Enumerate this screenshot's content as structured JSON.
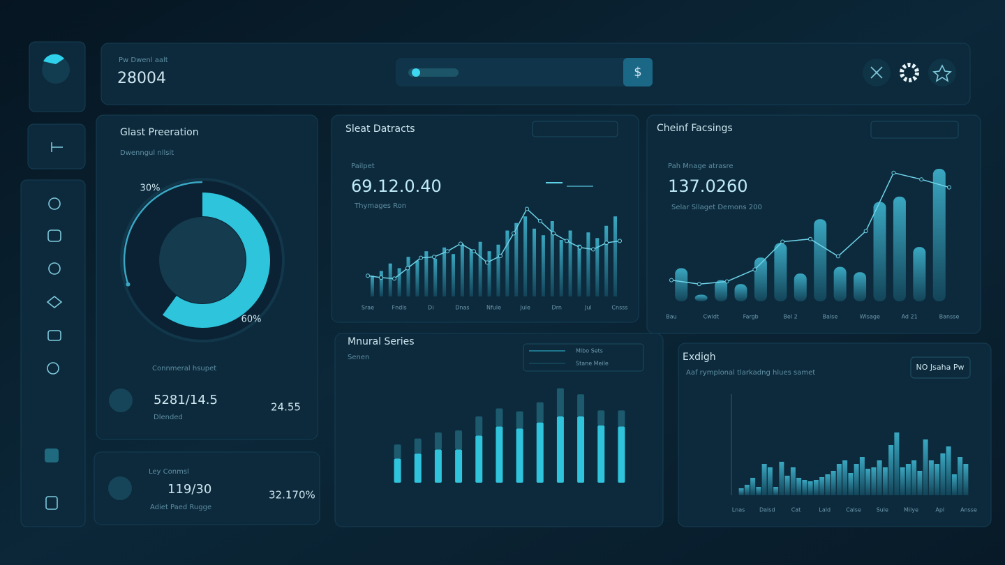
{
  "header": {
    "label": "Pw Dwenl aalt",
    "value": "28004",
    "search_button": "$"
  },
  "gauge_panel": {
    "title": "Glast Preeration",
    "subtitle": "Dwenngul nllsit",
    "chart": {
      "type": "pie",
      "values": [
        30,
        60
      ],
      "value_labels": [
        "30%",
        "60%"
      ]
    },
    "footer_label": "Connmeral hsupet",
    "footer_value": "5281/14.5",
    "footer_note": "Dlended",
    "footer_side": "24.55"
  },
  "summary_panel": {
    "label": "Ley Conmsl",
    "value": "119/30",
    "note": "Adiet Paed Rugge",
    "side": "32.170%"
  },
  "sales_panel": {
    "title": "Sleat Datracts",
    "label": "Pailpet",
    "value": "69.12.0.40",
    "note": "Thymages Ron",
    "chart": {
      "type": "bar",
      "ylim": [
        0,
        100
      ],
      "values": [
        22,
        27,
        35,
        30,
        42,
        38,
        48,
        40,
        52,
        45,
        56,
        50,
        58,
        48,
        55,
        70,
        78,
        85,
        72,
        65,
        80,
        60,
        70,
        55,
        68,
        62,
        75,
        85
      ],
      "line": [
        22,
        20,
        19,
        30,
        41,
        42,
        48,
        56,
        48,
        36,
        43,
        67,
        93,
        80,
        67,
        59,
        52,
        50,
        57,
        59
      ],
      "x_labels": [
        "Srae",
        "Fndls",
        "Di",
        "Dnas",
        "Nfule",
        "Jule",
        "Drn",
        "Jul",
        "Cnsss"
      ]
    }
  },
  "facings_panel": {
    "title": "Cheinf Facsings",
    "label": "Pah Mnage atrasre",
    "value": "137.0260",
    "note": "Selar Sllaget Demons 200",
    "chart": {
      "type": "bar",
      "ylim": [
        0,
        100
      ],
      "values": [
        25,
        5,
        16,
        13,
        33,
        44,
        21,
        62,
        26,
        22,
        75,
        79,
        41,
        100
      ],
      "line": [
        16,
        13,
        15,
        24,
        45,
        47,
        34,
        53,
        97,
        92,
        86
      ],
      "x_labels": [
        "Bau",
        "Cwldt",
        "Fargb",
        "Bel 2",
        "Balse",
        "Wlsage",
        "Ad 21",
        "Bansse"
      ]
    }
  },
  "series_panel": {
    "title": "Mnural Series",
    "subtitle": "Senen",
    "legend": [
      "Mlbo Sets",
      "Stane Meile"
    ],
    "chart": {
      "type": "stacked_bar",
      "ylim": [
        0,
        100
      ],
      "series": [
        {
          "name": "Mlbo Sets",
          "color": "#2fc3dc",
          "values": [
            24,
            29,
            33,
            33,
            47,
            56,
            54,
            60,
            66,
            66,
            57,
            56
          ]
        },
        {
          "name": "Stane Meile",
          "color": "#1d5a6e",
          "values": [
            14,
            15,
            17,
            19,
            19,
            18,
            17,
            20,
            28,
            22,
            15,
            16
          ]
        }
      ]
    }
  },
  "insight_panel": {
    "title": "Exdigh",
    "subtitle": "Aaf rymplonal tlarkadng hlues samet",
    "button": "NO Jsaha Pw",
    "chart": {
      "type": "bar",
      "ylim": [
        0,
        100
      ],
      "values": [
        10,
        15,
        25,
        12,
        45,
        40,
        12,
        48,
        28,
        40,
        25,
        22,
        20,
        22,
        26,
        30,
        35,
        45,
        50,
        32,
        45,
        55,
        38,
        40,
        50,
        40,
        72,
        90,
        40,
        45,
        50,
        35,
        80,
        50,
        45,
        60,
        70,
        30,
        55,
        45
      ],
      "x_labels": [
        "Lnas",
        "Dalsd",
        "Cat",
        "Lald",
        "Calse",
        "Sule",
        "Milye",
        "Apl",
        "Ansse"
      ]
    }
  }
}
